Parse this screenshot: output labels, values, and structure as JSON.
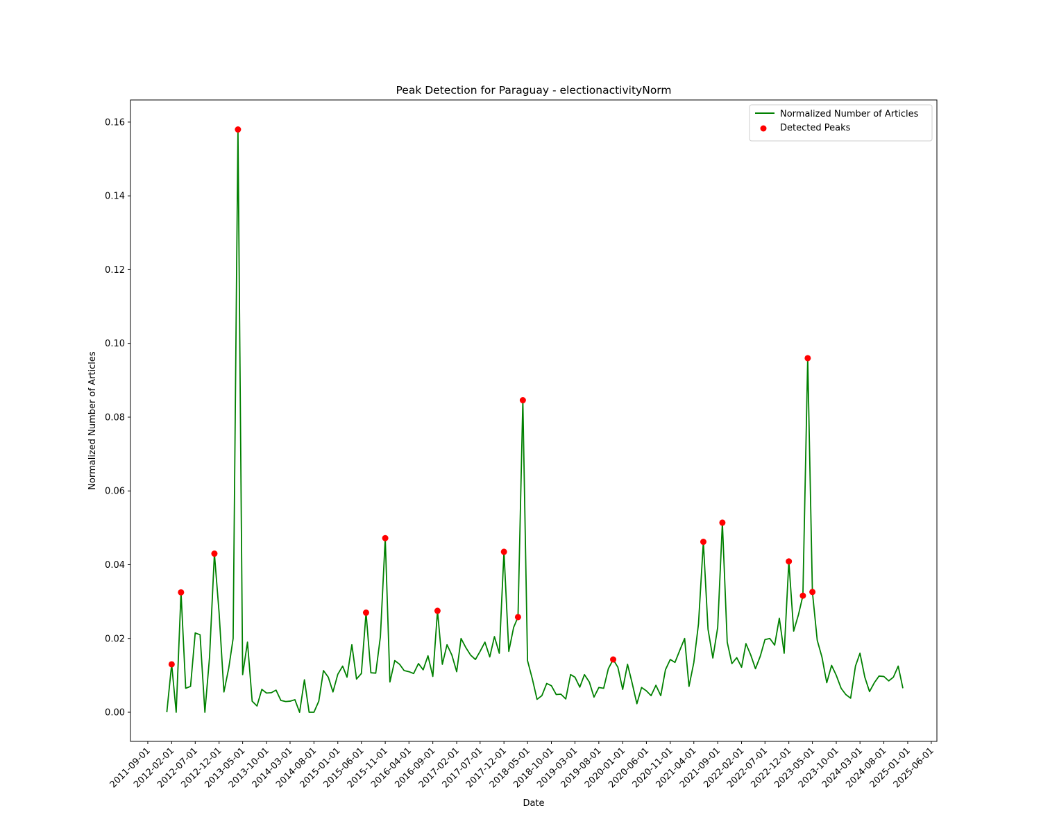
{
  "chart_data": {
    "type": "line",
    "title": "Peak Detection for Paraguay - electionactivityNorm",
    "x_label": "Date",
    "y_label": "Normalized Number of Articles",
    "x": [
      "2012-01-01",
      "2012-02-01",
      "2012-03-01",
      "2012-04-01",
      "2012-05-01",
      "2012-06-01",
      "2012-07-01",
      "2012-08-01",
      "2012-09-01",
      "2012-10-01",
      "2012-11-01",
      "2012-12-01",
      "2013-01-01",
      "2013-02-01",
      "2013-03-01",
      "2013-04-01",
      "2013-05-01",
      "2013-06-01",
      "2013-07-01",
      "2013-08-01",
      "2013-09-01",
      "2013-10-01",
      "2013-11-01",
      "2013-12-01",
      "2014-01-01",
      "2014-02-01",
      "2014-03-01",
      "2014-04-01",
      "2014-05-01",
      "2014-06-01",
      "2014-07-01",
      "2014-08-01",
      "2014-09-01",
      "2014-10-01",
      "2014-11-01",
      "2014-12-01",
      "2015-01-01",
      "2015-02-01",
      "2015-03-01",
      "2015-04-01",
      "2015-05-01",
      "2015-06-01",
      "2015-07-01",
      "2015-08-01",
      "2015-09-01",
      "2015-10-01",
      "2015-11-01",
      "2015-12-01",
      "2016-01-01",
      "2016-02-01",
      "2016-03-01",
      "2016-04-01",
      "2016-05-01",
      "2016-06-01",
      "2016-07-01",
      "2016-08-01",
      "2016-09-01",
      "2016-10-01",
      "2016-11-01",
      "2016-12-01",
      "2017-01-01",
      "2017-02-01",
      "2017-03-01",
      "2017-04-01",
      "2017-05-01",
      "2017-06-01",
      "2017-07-01",
      "2017-08-01",
      "2017-09-01",
      "2017-10-01",
      "2017-11-01",
      "2017-12-01",
      "2018-01-01",
      "2018-02-01",
      "2018-03-01",
      "2018-04-01",
      "2018-05-01",
      "2018-06-01",
      "2018-07-01",
      "2018-08-01",
      "2018-09-01",
      "2018-10-01",
      "2018-11-01",
      "2018-12-01",
      "2019-01-01",
      "2019-02-01",
      "2019-03-01",
      "2019-04-01",
      "2019-05-01",
      "2019-06-01",
      "2019-07-01",
      "2019-08-01",
      "2019-09-01",
      "2019-10-01",
      "2019-11-01",
      "2019-12-01",
      "2020-01-01",
      "2020-02-01",
      "2020-03-01",
      "2020-04-01",
      "2020-05-01",
      "2020-06-01",
      "2020-07-01",
      "2020-08-01",
      "2020-09-01",
      "2020-10-01",
      "2020-11-01",
      "2020-12-01",
      "2021-01-01",
      "2021-02-01",
      "2021-03-01",
      "2021-04-01",
      "2021-05-01",
      "2021-06-01",
      "2021-07-01",
      "2021-08-01",
      "2021-09-01",
      "2021-10-01",
      "2021-11-01",
      "2021-12-01",
      "2022-01-01",
      "2022-02-01",
      "2022-03-01",
      "2022-04-01",
      "2022-05-01",
      "2022-06-01",
      "2022-07-01",
      "2022-08-01",
      "2022-09-01",
      "2022-10-01",
      "2022-11-01",
      "2022-12-01",
      "2023-01-01",
      "2023-02-01",
      "2023-03-01",
      "2023-04-01",
      "2023-05-01",
      "2023-06-01",
      "2023-07-01",
      "2023-08-01",
      "2023-09-01",
      "2023-10-01",
      "2023-11-01",
      "2023-12-01",
      "2024-01-01",
      "2024-02-01",
      "2024-03-01",
      "2024-04-01",
      "2024-05-01",
      "2024-06-01",
      "2024-07-01",
      "2024-08-01",
      "2024-09-01",
      "2024-10-01",
      "2024-11-01",
      "2024-12-01"
    ],
    "series": [
      {
        "name": "Normalized Number of Articles",
        "color": "#008000",
        "type": "line",
        "values": [
          0.0,
          0.013,
          0.0,
          0.0325,
          0.0065,
          0.007,
          0.0215,
          0.021,
          0.0,
          0.015,
          0.043,
          0.027,
          0.0055,
          0.012,
          0.02,
          0.158,
          0.0102,
          0.019,
          0.003,
          0.0017,
          0.0062,
          0.0052,
          0.0053,
          0.006,
          0.0032,
          0.0029,
          0.003,
          0.0034,
          0.0,
          0.0088,
          0.0,
          0.0,
          0.003,
          0.0113,
          0.0095,
          0.0055,
          0.0103,
          0.0125,
          0.0095,
          0.0183,
          0.009,
          0.0105,
          0.027,
          0.0107,
          0.0106,
          0.0205,
          0.0472,
          0.0082,
          0.014,
          0.013,
          0.0113,
          0.011,
          0.0105,
          0.0132,
          0.0115,
          0.0153,
          0.0097,
          0.0275,
          0.013,
          0.0183,
          0.0155,
          0.011,
          0.02,
          0.0175,
          0.0155,
          0.0143,
          0.0165,
          0.019,
          0.015,
          0.0205,
          0.016,
          0.0435,
          0.0165,
          0.023,
          0.0258,
          0.0846,
          0.014,
          0.009,
          0.0035,
          0.0045,
          0.0078,
          0.0072,
          0.0048,
          0.0049,
          0.0036,
          0.0102,
          0.0095,
          0.0068,
          0.0102,
          0.0082,
          0.0041,
          0.0067,
          0.0065,
          0.0118,
          0.0143,
          0.0122,
          0.0062,
          0.013,
          0.008,
          0.0023,
          0.0067,
          0.0058,
          0.0045,
          0.0073,
          0.0045,
          0.0115,
          0.0143,
          0.0135,
          0.0168,
          0.02,
          0.007,
          0.0135,
          0.024,
          0.0462,
          0.0225,
          0.0147,
          0.023,
          0.0514,
          0.019,
          0.0132,
          0.0148,
          0.0122,
          0.0186,
          0.0155,
          0.0118,
          0.0152,
          0.0197,
          0.02,
          0.0182,
          0.0255,
          0.016,
          0.0409,
          0.022,
          0.0265,
          0.0316,
          0.096,
          0.0326,
          0.0195,
          0.015,
          0.008,
          0.0127,
          0.01,
          0.0065,
          0.0048,
          0.0038,
          0.0125,
          0.016,
          0.0095,
          0.0056,
          0.008,
          0.0098,
          0.0097,
          0.0085,
          0.0095,
          0.0125,
          0.0065
        ]
      },
      {
        "name": "Detected Peaks",
        "color": "#ff0000",
        "type": "scatter",
        "x": [
          "2012-02-01",
          "2012-04-01",
          "2012-11-01",
          "2013-04-01",
          "2015-07-01",
          "2015-11-01",
          "2016-10-01",
          "2017-12-01",
          "2018-03-01",
          "2018-04-01",
          "2019-11-01",
          "2021-06-01",
          "2021-10-01",
          "2022-12-01",
          "2023-03-01",
          "2023-04-01",
          "2023-05-01"
        ],
        "values": [
          0.013,
          0.0325,
          0.043,
          0.158,
          0.027,
          0.0472,
          0.0275,
          0.0435,
          0.0258,
          0.0846,
          0.0143,
          0.0462,
          0.0514,
          0.0409,
          0.0316,
          0.096,
          0.0326
        ]
      }
    ],
    "xlim": [
      "2011-05-13",
      "2025-07-07"
    ],
    "xticks": [
      "2011-09-01",
      "2012-02-01",
      "2012-07-01",
      "2012-12-01",
      "2013-05-01",
      "2013-10-01",
      "2014-03-01",
      "2014-08-01",
      "2015-01-01",
      "2015-06-01",
      "2015-11-01",
      "2016-04-01",
      "2016-09-01",
      "2017-02-01",
      "2017-07-01",
      "2017-12-01",
      "2018-05-01",
      "2018-10-01",
      "2019-03-01",
      "2019-08-01",
      "2020-01-01",
      "2020-06-01",
      "2020-11-01",
      "2021-04-01",
      "2021-09-01",
      "2022-02-01",
      "2022-07-01",
      "2022-12-01",
      "2023-05-01",
      "2023-10-01",
      "2024-03-01",
      "2024-08-01",
      "2025-01-01",
      "2025-06-01"
    ],
    "ylim": [
      -0.0079,
      0.166
    ],
    "yticks": [
      {
        "value": 0,
        "label": "0.00"
      },
      {
        "value": 0.02,
        "label": "0.02"
      },
      {
        "value": 0.04,
        "label": "0.04"
      },
      {
        "value": 0.06,
        "label": "0.06"
      },
      {
        "value": 0.08,
        "label": "0.08"
      },
      {
        "value": 0.1,
        "label": "0.10"
      },
      {
        "value": 0.12,
        "label": "0.12"
      },
      {
        "value": 0.14,
        "label": "0.14"
      },
      {
        "value": 0.16,
        "label": "0.16"
      }
    ],
    "legend": "upper right"
  }
}
